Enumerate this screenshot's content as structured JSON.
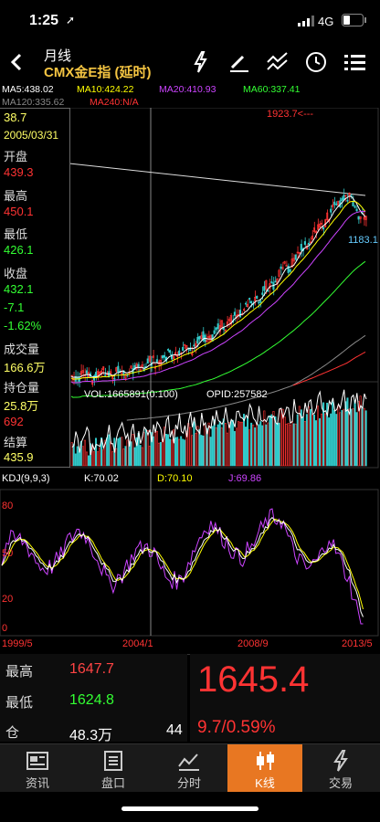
{
  "status_bar": {
    "time": "1:25",
    "network": "4G"
  },
  "header": {
    "period": "月线",
    "instrument": "CMX金E指 (延时)"
  },
  "ma_line1": {
    "ma5": "MA5:438.02",
    "ma10": "MA10:424.22",
    "ma20": "MA20:410.93",
    "ma60": "MA60:337.41"
  },
  "ma_line2": {
    "ma120": "MA120:335.62",
    "ma240": "MA240:N/A"
  },
  "colors": {
    "ma5": "#ffffff",
    "ma10": "#ffff00",
    "ma20": "#cc44ff",
    "ma60": "#33ff33",
    "ma120": "#888888",
    "ma240": "#ff3333",
    "up": "#ff3333",
    "down": "#33cccc",
    "accent": "#e87722"
  },
  "info_panel": {
    "top_value": "38.7",
    "date": "2005/03/31",
    "open_label": "开盘",
    "open": "439.3",
    "high_label": "最高",
    "high": "450.1",
    "low_label": "最低",
    "low": "426.1",
    "close_label": "收盘",
    "close": "432.1",
    "change": "-7.1",
    "change_pct": "-1.62%",
    "volume_label": "成交量",
    "volume": "166.6万",
    "oi_label": "持仓量",
    "oi": "25.8万",
    "oi_change": "692",
    "settle_label": "结算",
    "settle": "435.9"
  },
  "chart_marks": {
    "high_mark": "1923.7<---",
    "last_mark": "1183.1"
  },
  "volume_panel": {
    "vol": "VOL:1665891(0:100)",
    "opid": "OPID:257582"
  },
  "kdj_panel": {
    "title": "KDJ(9,9,3)",
    "k": "K:70.02",
    "d": "D:70.10",
    "j": "J:69.86",
    "levels": [
      "80",
      "50",
      "20",
      "0"
    ]
  },
  "x_axis": {
    "labels": [
      "1999/5",
      "2004/1",
      "2008/9",
      "2013/5"
    ]
  },
  "quote": {
    "high_label": "最高",
    "high": "1647.7",
    "low_label": "最低",
    "low": "1624.8",
    "oi_label": "仓",
    "oi": "48.3万",
    "count": "44",
    "price": "1645.4",
    "change": "9.7/0.59%"
  },
  "tabs": [
    {
      "label": "资讯",
      "icon": "news-icon"
    },
    {
      "label": "盘口",
      "icon": "orderbook-icon"
    },
    {
      "label": "分时",
      "icon": "timeshare-icon"
    },
    {
      "label": "K线",
      "icon": "candlestick-icon"
    },
    {
      "label": "交易",
      "icon": "trade-icon"
    }
  ],
  "active_tab": "K线"
}
